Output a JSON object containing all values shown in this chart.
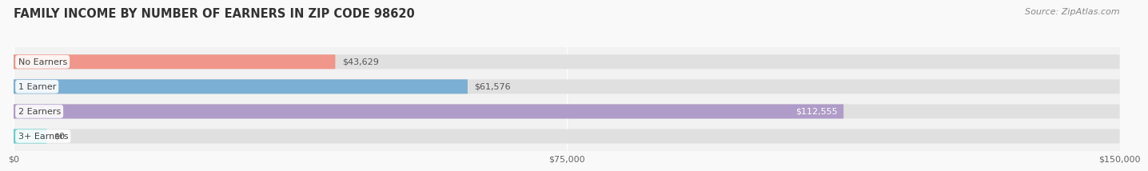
{
  "title": "FAMILY INCOME BY NUMBER OF EARNERS IN ZIP CODE 98620",
  "source": "Source: ZipAtlas.com",
  "categories": [
    "No Earners",
    "1 Earner",
    "2 Earners",
    "3+ Earners"
  ],
  "values": [
    43629,
    61576,
    112555,
    0
  ],
  "bar_colors": [
    "#f0968a",
    "#7bafd4",
    "#b09cc8",
    "#6dcfcf"
  ],
  "label_colors": [
    "#555555",
    "#555555",
    "#ffffff",
    "#555555"
  ],
  "value_labels": [
    "$43,629",
    "$61,576",
    "$112,555",
    "$0"
  ],
  "background_color": "#f2f2f2",
  "bar_bg_color": "#e0e0e0",
  "xlim": [
    0,
    150000
  ],
  "xticks": [
    0,
    75000,
    150000
  ],
  "xtick_labels": [
    "$0",
    "$75,000",
    "$150,000"
  ],
  "title_fontsize": 10.5,
  "source_fontsize": 8,
  "label_fontsize": 8,
  "value_fontsize": 8,
  "tick_fontsize": 8,
  "bar_height": 0.58
}
